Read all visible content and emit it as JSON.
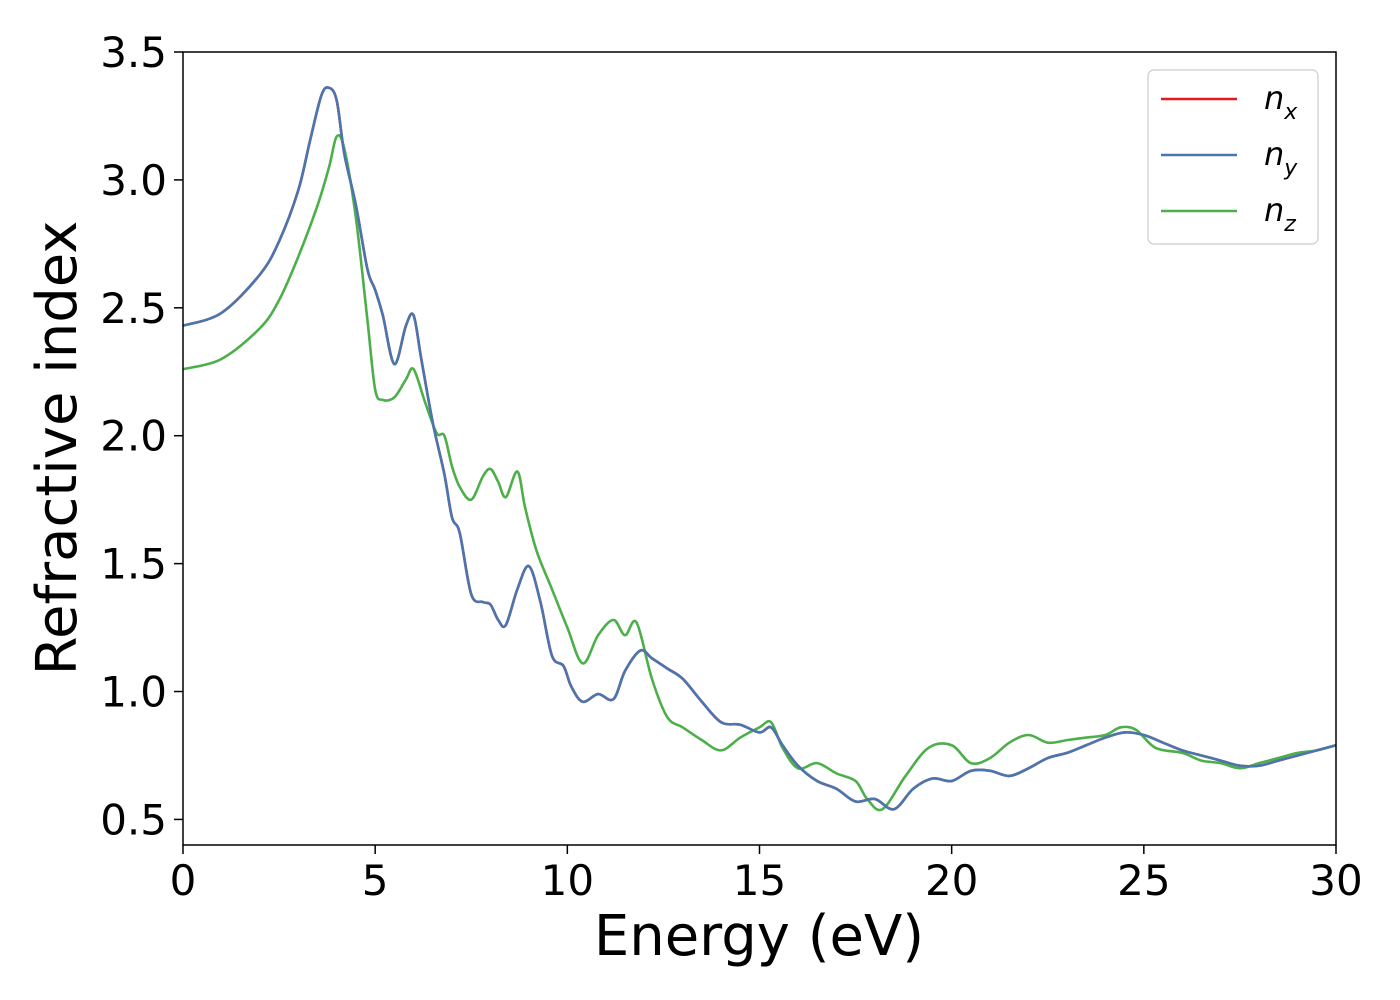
{
  "chart_data": {
    "type": "line",
    "xlabel": "Energy (eV)",
    "ylabel": "Refractive index",
    "xlim": [
      0,
      30
    ],
    "ylim": [
      0.4,
      3.5
    ],
    "xticks": [
      "0",
      "5",
      "10",
      "15",
      "20",
      "25",
      "30"
    ],
    "yticks": [
      "0.5",
      "1.0",
      "1.5",
      "2.0",
      "2.5",
      "3.0",
      "3.5"
    ],
    "grid": false,
    "legend_position": "top-right",
    "series": [
      {
        "name": "n",
        "subscript": "x",
        "color": "#e31a1c",
        "x": [
          0,
          1,
          2,
          2.5,
          3,
          3.3,
          3.6,
          3.8,
          4.0,
          4.2,
          4.5,
          4.8,
          5.0,
          5.2,
          5.5,
          5.8,
          6.0,
          6.2,
          6.5,
          6.8,
          7.0,
          7.2,
          7.5,
          7.8,
          8.0,
          8.2,
          8.4,
          8.7,
          9.0,
          9.3,
          9.6,
          9.9,
          10.1,
          10.4,
          10.8,
          11.2,
          11.5,
          11.9,
          12.2,
          12.6,
          13.0,
          13.5,
          14.0,
          14.5,
          15.0,
          15.3,
          15.6,
          16.0,
          16.5,
          17.0,
          17.5,
          18.0,
          18.5,
          19.0,
          19.5,
          20.0,
          20.5,
          21.0,
          21.5,
          22.0,
          22.5,
          23.0,
          23.5,
          24.0,
          24.5,
          25.0,
          25.5,
          26.0,
          26.5,
          27.0,
          27.5,
          28.0,
          28.5,
          29.0,
          29.5,
          30.0
        ],
        "values": [
          2.43,
          2.48,
          2.63,
          2.76,
          2.96,
          3.15,
          3.33,
          3.36,
          3.31,
          3.1,
          2.9,
          2.65,
          2.57,
          2.47,
          2.28,
          2.43,
          2.47,
          2.3,
          2.05,
          1.85,
          1.68,
          1.62,
          1.38,
          1.35,
          1.34,
          1.28,
          1.26,
          1.4,
          1.49,
          1.35,
          1.14,
          1.1,
          1.02,
          0.96,
          0.99,
          0.97,
          1.08,
          1.16,
          1.13,
          1.09,
          1.05,
          0.96,
          0.88,
          0.87,
          0.84,
          0.86,
          0.79,
          0.71,
          0.65,
          0.62,
          0.57,
          0.58,
          0.54,
          0.62,
          0.66,
          0.65,
          0.69,
          0.69,
          0.67,
          0.7,
          0.74,
          0.76,
          0.79,
          0.82,
          0.84,
          0.83,
          0.8,
          0.77,
          0.75,
          0.73,
          0.71,
          0.71,
          0.73,
          0.75,
          0.77,
          0.79
        ]
      },
      {
        "name": "n",
        "subscript": "y",
        "color": "#4a76b0",
        "x": [
          0,
          1,
          2,
          2.5,
          3,
          3.3,
          3.6,
          3.8,
          4.0,
          4.2,
          4.5,
          4.8,
          5.0,
          5.2,
          5.5,
          5.8,
          6.0,
          6.2,
          6.5,
          6.8,
          7.0,
          7.2,
          7.5,
          7.8,
          8.0,
          8.2,
          8.4,
          8.7,
          9.0,
          9.3,
          9.6,
          9.9,
          10.1,
          10.4,
          10.8,
          11.2,
          11.5,
          11.9,
          12.2,
          12.6,
          13.0,
          13.5,
          14.0,
          14.5,
          15.0,
          15.3,
          15.6,
          16.0,
          16.5,
          17.0,
          17.5,
          18.0,
          18.5,
          19.0,
          19.5,
          20.0,
          20.5,
          21.0,
          21.5,
          22.0,
          22.5,
          23.0,
          23.5,
          24.0,
          24.5,
          25.0,
          25.5,
          26.0,
          26.5,
          27.0,
          27.5,
          28.0,
          28.5,
          29.0,
          29.5,
          30.0
        ],
        "values": [
          2.43,
          2.48,
          2.63,
          2.76,
          2.96,
          3.15,
          3.33,
          3.36,
          3.31,
          3.1,
          2.9,
          2.65,
          2.57,
          2.47,
          2.28,
          2.43,
          2.47,
          2.3,
          2.05,
          1.85,
          1.68,
          1.62,
          1.38,
          1.35,
          1.34,
          1.28,
          1.26,
          1.4,
          1.49,
          1.35,
          1.14,
          1.1,
          1.02,
          0.96,
          0.99,
          0.97,
          1.08,
          1.16,
          1.13,
          1.09,
          1.05,
          0.96,
          0.88,
          0.87,
          0.84,
          0.86,
          0.79,
          0.71,
          0.65,
          0.62,
          0.57,
          0.58,
          0.54,
          0.62,
          0.66,
          0.65,
          0.69,
          0.69,
          0.67,
          0.7,
          0.74,
          0.76,
          0.79,
          0.82,
          0.84,
          0.83,
          0.8,
          0.77,
          0.75,
          0.73,
          0.71,
          0.71,
          0.73,
          0.75,
          0.77,
          0.79
        ]
      },
      {
        "name": "n",
        "subscript": "z",
        "color": "#4daf4a",
        "x": [
          0,
          1,
          2,
          2.5,
          3,
          3.5,
          3.8,
          4.0,
          4.2,
          4.5,
          4.8,
          5.0,
          5.2,
          5.5,
          5.8,
          6.0,
          6.3,
          6.6,
          6.8,
          7.0,
          7.2,
          7.5,
          7.8,
          8.0,
          8.2,
          8.4,
          8.7,
          8.9,
          9.2,
          9.6,
          10.0,
          10.4,
          10.8,
          11.2,
          11.5,
          11.8,
          12.2,
          12.6,
          13.0,
          13.5,
          14.0,
          14.5,
          15.0,
          15.3,
          15.6,
          16.0,
          16.5,
          17.0,
          17.5,
          17.8,
          18.2,
          18.8,
          19.4,
          20.0,
          20.5,
          21.0,
          21.5,
          22.0,
          22.5,
          23.0,
          23.5,
          24.0,
          24.4,
          24.8,
          25.3,
          26.0,
          26.5,
          27.0,
          27.5,
          28.0,
          28.5,
          29.0,
          29.5,
          30.0
        ],
        "values": [
          2.26,
          2.3,
          2.42,
          2.53,
          2.7,
          2.9,
          3.05,
          3.17,
          3.12,
          2.85,
          2.45,
          2.18,
          2.14,
          2.15,
          2.22,
          2.26,
          2.13,
          2.01,
          2.0,
          1.88,
          1.8,
          1.75,
          1.84,
          1.87,
          1.82,
          1.76,
          1.86,
          1.72,
          1.55,
          1.4,
          1.25,
          1.11,
          1.22,
          1.28,
          1.22,
          1.27,
          1.05,
          0.9,
          0.86,
          0.81,
          0.77,
          0.82,
          0.86,
          0.88,
          0.78,
          0.7,
          0.72,
          0.68,
          0.65,
          0.58,
          0.54,
          0.67,
          0.78,
          0.79,
          0.72,
          0.74,
          0.8,
          0.83,
          0.8,
          0.81,
          0.82,
          0.83,
          0.86,
          0.85,
          0.78,
          0.76,
          0.73,
          0.72,
          0.7,
          0.72,
          0.74,
          0.76,
          0.77,
          0.79
        ]
      }
    ]
  }
}
